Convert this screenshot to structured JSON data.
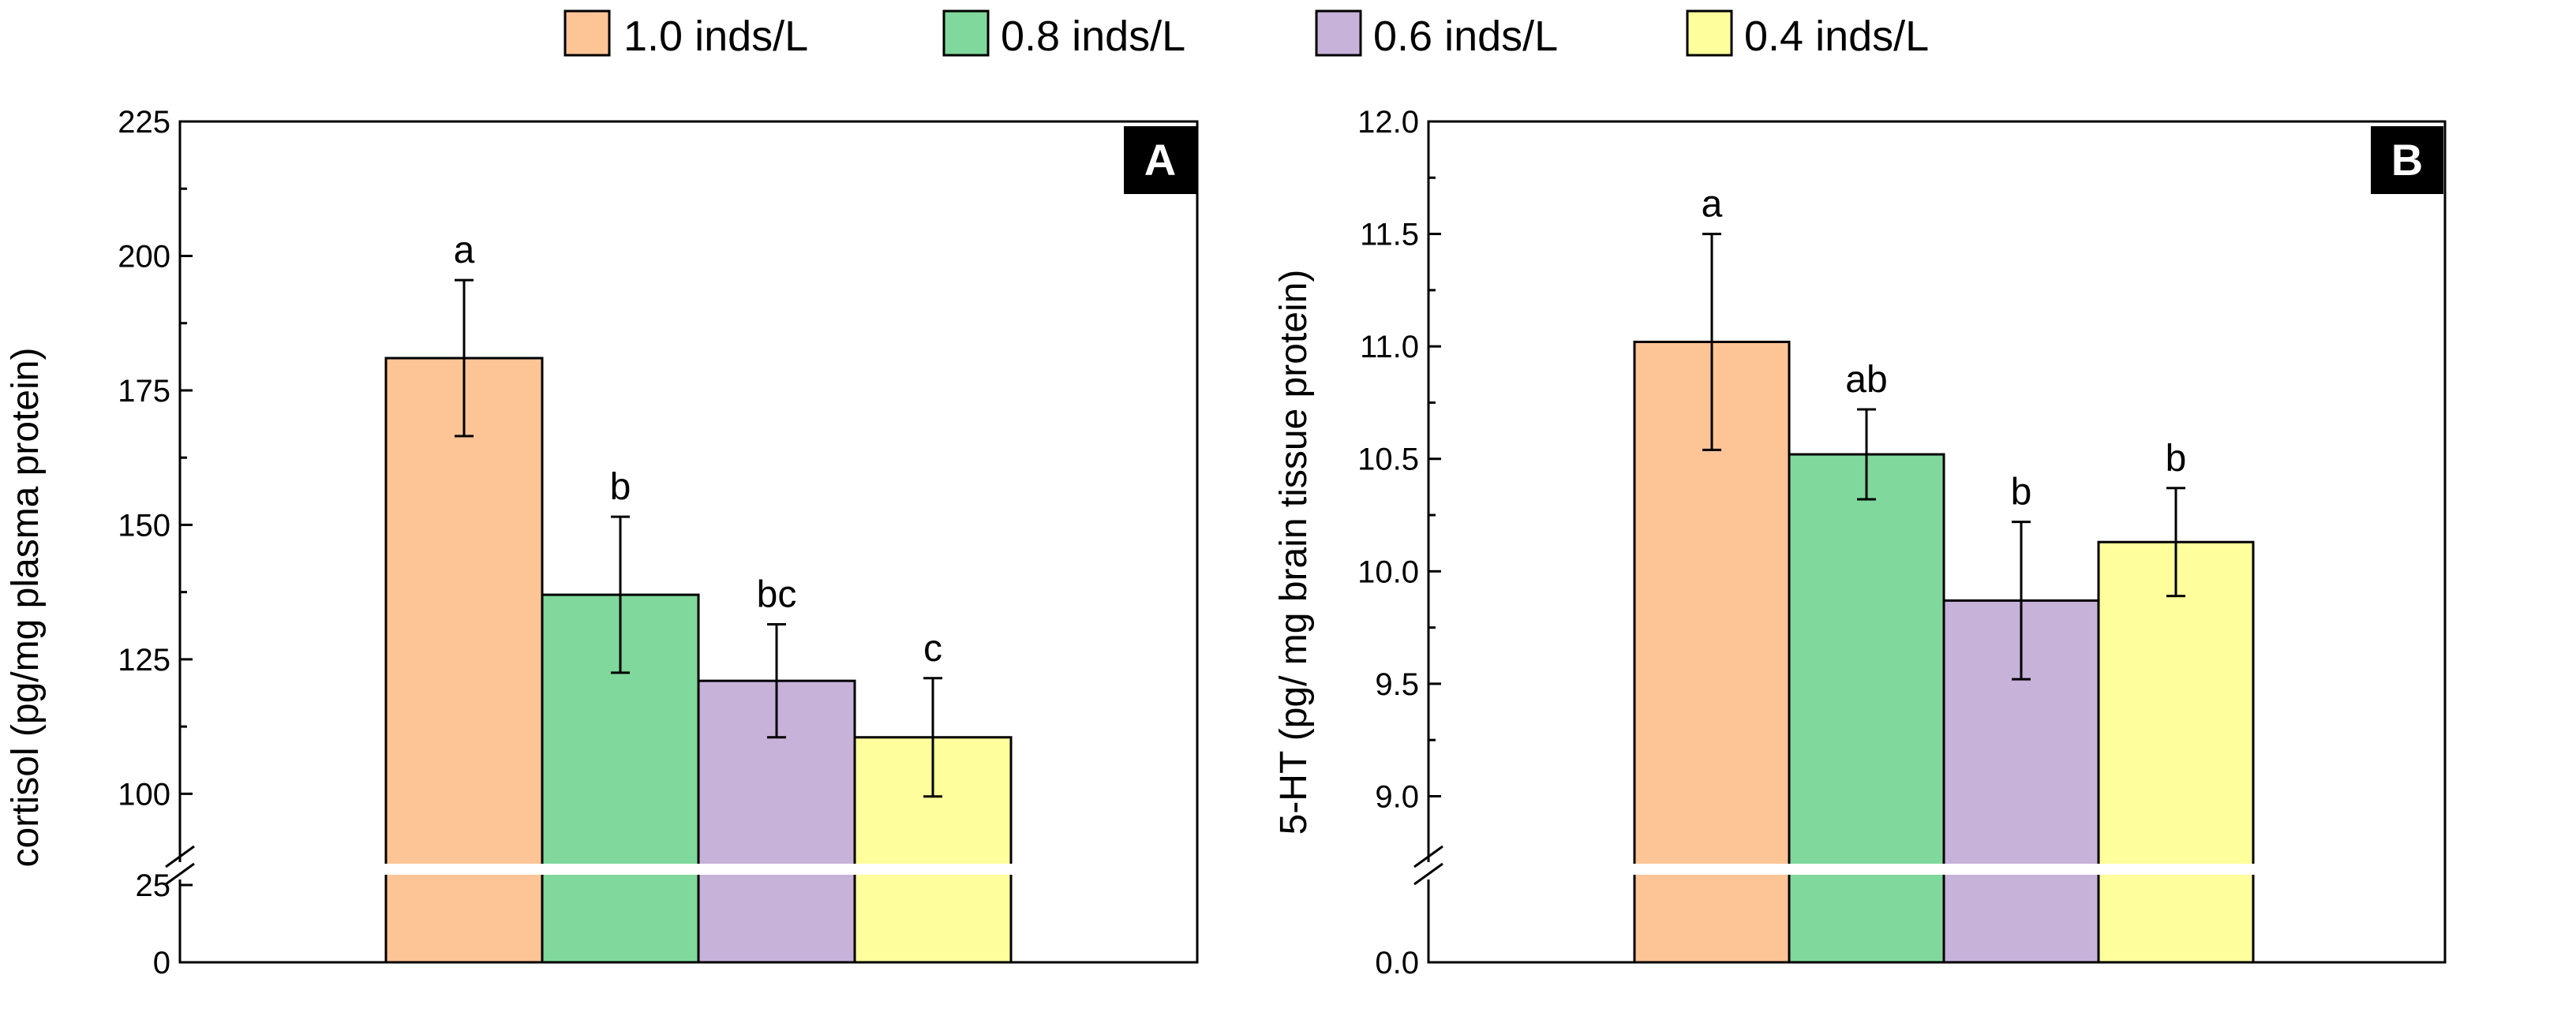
{
  "legend": {
    "items": [
      {
        "label": "1.0 inds/L",
        "color": "#FDC496"
      },
      {
        "label": "0.8 inds/L",
        "color": "#80D89C"
      },
      {
        "label": "0.6 inds/L",
        "color": "#C7B2DA"
      },
      {
        "label": "0.4 inds/L",
        "color": "#FEFE9D"
      }
    ]
  },
  "chart_data": [
    {
      "type": "bar",
      "panel": "A",
      "ylabel": "cortisol (pg/mg plasma protein)",
      "xlabel": "",
      "categories": [
        "1.0 inds/L",
        "0.8 inds/L",
        "0.6 inds/L",
        "0.4 inds/L"
      ],
      "values": [
        181,
        137,
        121,
        110.5
      ],
      "errors": [
        14.5,
        14.5,
        10.5,
        11
      ],
      "significance": [
        "a",
        "b",
        "bc",
        "c"
      ],
      "ylim": [
        0,
        225
      ],
      "axis_break": [
        25,
        87
      ],
      "ticks_lower": [
        "0",
        "25"
      ],
      "ticks_upper": [
        "100",
        "125",
        "150",
        "175",
        "200",
        "225"
      ],
      "colors": [
        "#FDC496",
        "#80D89C",
        "#C7B2DA",
        "#FEFE9D"
      ]
    },
    {
      "type": "bar",
      "panel": "B",
      "ylabel": "5-HT (pg/ mg brain tissue protein)",
      "xlabel": "",
      "categories": [
        "1.0 inds/L",
        "0.8 inds/L",
        "0.6 inds/L",
        "0.4 inds/L"
      ],
      "values": [
        11.02,
        10.52,
        9.87,
        10.13
      ],
      "errors": [
        0.48,
        0.2,
        0.35,
        0.24
      ],
      "significance": [
        "a",
        "ab",
        "b",
        "b"
      ],
      "ylim": [
        0,
        12
      ],
      "axis_break": [
        0.5,
        8.7
      ],
      "ticks_lower": [
        "0.0"
      ],
      "ticks_upper": [
        "9.0",
        "9.5",
        "10.0",
        "10.5",
        "11.0",
        "11.5",
        "12.0"
      ],
      "colors": [
        "#FDC496",
        "#80D89C",
        "#C7B2DA",
        "#FEFE9D"
      ]
    }
  ]
}
